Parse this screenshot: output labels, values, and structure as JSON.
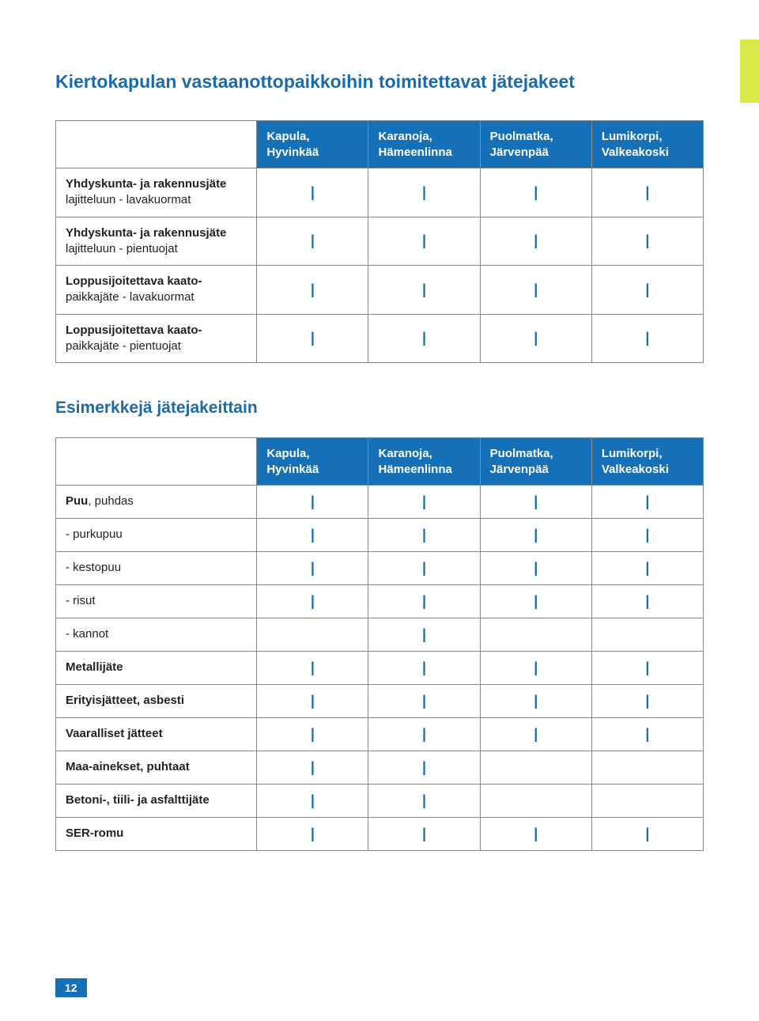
{
  "accent_color": "#d9e94a",
  "brand_blue": "#1670b8",
  "title_blue": "#1d6aa8",
  "border_color": "#888888",
  "mark_glyph": "|",
  "page_title": "Kiertokapulan vastaanottopaikkoihin toimitettavat jätejakeet",
  "section_title": "Esimerkkejä jätejakeittain",
  "page_number": "12",
  "columns": [
    {
      "line1": "Kapula,",
      "line2": "Hyvinkää"
    },
    {
      "line1": "Karanoja,",
      "line2": "Hämeenlinna"
    },
    {
      "line1": "Puolmatka,",
      "line2": "Järvenpää"
    },
    {
      "line1": "Lumikorpi,",
      "line2": "Valkeakoski"
    }
  ],
  "table1_rows": [
    {
      "label_bold": "Yhdyskunta- ja rakennusjäte",
      "label_sub": "lajitteluun - lavakuormat",
      "marks": [
        true,
        true,
        true,
        true
      ]
    },
    {
      "label_bold": "Yhdyskunta- ja rakennusjäte",
      "label_sub": "lajitteluun - pientuojat",
      "marks": [
        true,
        true,
        true,
        true
      ]
    },
    {
      "label_bold": "Loppusijoitettava kaato-",
      "label_sub": "paikkajäte  - lavakuormat",
      "marks": [
        true,
        true,
        true,
        true
      ]
    },
    {
      "label_bold": "Loppusijoitettava kaato-",
      "label_sub": "paikkajäte - pientuojat",
      "marks": [
        true,
        true,
        true,
        true
      ]
    }
  ],
  "table2_rows": [
    {
      "label": "Puu, puhdas",
      "bold_prefix": "Puu",
      "marks": [
        true,
        true,
        true,
        true
      ]
    },
    {
      "label": "- purkupuu",
      "bold_prefix": "",
      "marks": [
        true,
        true,
        true,
        true
      ]
    },
    {
      "label": "- kestopuu",
      "bold_prefix": "",
      "marks": [
        true,
        true,
        true,
        true
      ]
    },
    {
      "label": "- risut",
      "bold_prefix": "",
      "marks": [
        true,
        true,
        true,
        true
      ]
    },
    {
      "label": "- kannot",
      "bold_prefix": "",
      "marks": [
        false,
        true,
        false,
        false
      ]
    },
    {
      "label": "Metallijäte",
      "bold_prefix": "all",
      "marks": [
        true,
        true,
        true,
        true
      ]
    },
    {
      "label": "Erityisjätteet, asbesti",
      "bold_prefix": "all",
      "marks": [
        true,
        true,
        true,
        true
      ]
    },
    {
      "label": "Vaaralliset jätteet",
      "bold_prefix": "all",
      "marks": [
        true,
        true,
        true,
        true
      ]
    },
    {
      "label": "Maa-ainekset, puhtaat",
      "bold_prefix": "all",
      "marks": [
        true,
        true,
        false,
        false
      ]
    },
    {
      "label": "Betoni-, tiili- ja asfalttijäte",
      "bold_prefix": "all",
      "marks": [
        true,
        true,
        false,
        false
      ]
    },
    {
      "label": "SER-romu",
      "bold_prefix": "all",
      "marks": [
        true,
        true,
        true,
        true
      ]
    }
  ]
}
